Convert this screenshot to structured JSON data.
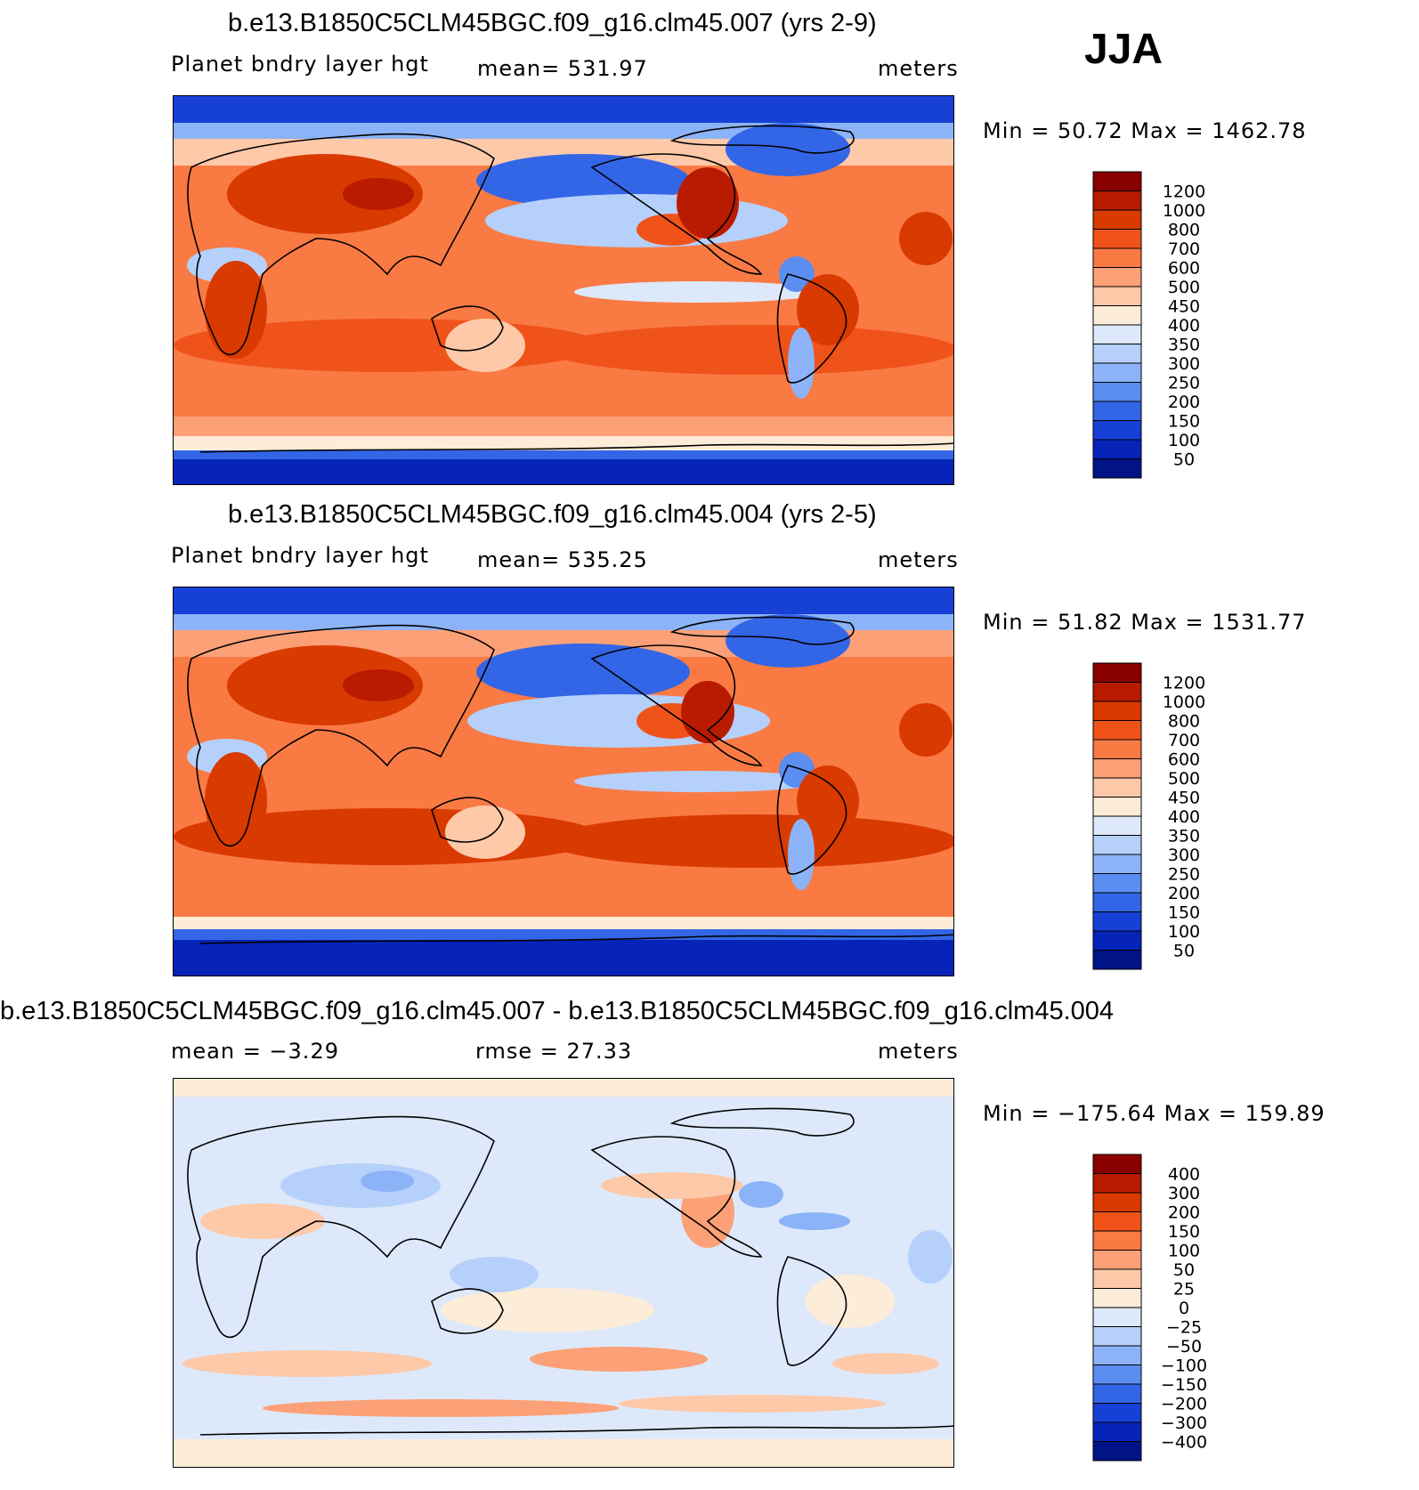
{
  "season_label": "JJA",
  "panels": [
    {
      "title": "b.e13.B1850C5CLM45BGC.f09_g16.clm45.007 (yrs 2-9)",
      "variable": "Planet bndry layer hgt",
      "stat_text": "mean=  531.97",
      "units": "meters",
      "minmax": "Min =    50.72  Max  =  1462.78"
    },
    {
      "title": "b.e13.B1850C5CLM45BGC.f09_g16.clm45.004 (yrs 2-5)",
      "variable": "Planet bndry layer hgt",
      "stat_text": "mean=  535.25",
      "units": "meters",
      "minmax": "Min =    51.82  Max  =  1531.77"
    },
    {
      "title": "b.e13.B1850C5CLM45BGC.f09_g16.clm45.007 - b.e13.B1850C5CLM45BGC.f09_g16.clm45.004",
      "mean_text": "mean =   −3.29",
      "rmse_text": "rmse =   27.33",
      "units": "meters",
      "minmax": "Min = −175.64  Max  =  159.89"
    }
  ],
  "chart_data": [
    {
      "type": "heatmap",
      "title": "b.e13.B1850C5CLM45BGC.f09_g16.clm45.007 (yrs 2-9)",
      "variable": "Planet bndry layer hgt",
      "units": "meters",
      "mean": 531.97,
      "min": 50.72,
      "max": 1462.78,
      "colorbar_levels": [
        "1200",
        "1000",
        "800",
        "700",
        "600",
        "500",
        "450",
        "400",
        "350",
        "300",
        "250",
        "200",
        "150",
        "100",
        "50"
      ],
      "colorbar_colors": [
        "#8a0000",
        "#b81b00",
        "#d93a00",
        "#f0531a",
        "#fa7a44",
        "#fca077",
        "#fdc9a9",
        "#fdecd8",
        "#dde9fa",
        "#b5d0fa",
        "#8cb3f7",
        "#5b8ef0",
        "#3366e6",
        "#1740d6",
        "#0624b8",
        "#001487"
      ]
    },
    {
      "type": "heatmap",
      "title": "b.e13.B1850C5CLM45BGC.f09_g16.clm45.004 (yrs 2-5)",
      "variable": "Planet bndry layer hgt",
      "units": "meters",
      "mean": 535.25,
      "min": 51.82,
      "max": 1531.77,
      "colorbar_levels": [
        "1200",
        "1000",
        "800",
        "700",
        "600",
        "500",
        "450",
        "400",
        "350",
        "300",
        "250",
        "200",
        "150",
        "100",
        "50"
      ],
      "colorbar_colors": [
        "#8a0000",
        "#b81b00",
        "#d93a00",
        "#f0531a",
        "#fa7a44",
        "#fca077",
        "#fdc9a9",
        "#fdecd8",
        "#dde9fa",
        "#b5d0fa",
        "#8cb3f7",
        "#5b8ef0",
        "#3366e6",
        "#1740d6",
        "#0624b8",
        "#001487"
      ]
    },
    {
      "type": "heatmap",
      "title": "b.e13.B1850C5CLM45BGC.f09_g16.clm45.007 - b.e13.B1850C5CLM45BGC.f09_g16.clm45.004",
      "units": "meters",
      "mean": -3.29,
      "rmse": 27.33,
      "min": -175.64,
      "max": 159.89,
      "colorbar_levels": [
        "400",
        "300",
        "200",
        "150",
        "100",
        "50",
        "25",
        "0",
        "−25",
        "−50",
        "−100",
        "−150",
        "−200",
        "−300",
        "−400"
      ],
      "colorbar_colors": [
        "#8a0000",
        "#b81b00",
        "#d93a00",
        "#f0531a",
        "#fa7a44",
        "#fca077",
        "#fdc9a9",
        "#fdecd8",
        "#dde9fa",
        "#b5d0fa",
        "#8cb3f7",
        "#5b8ef0",
        "#3366e6",
        "#1740d6",
        "#0624b8",
        "#001487"
      ]
    }
  ]
}
